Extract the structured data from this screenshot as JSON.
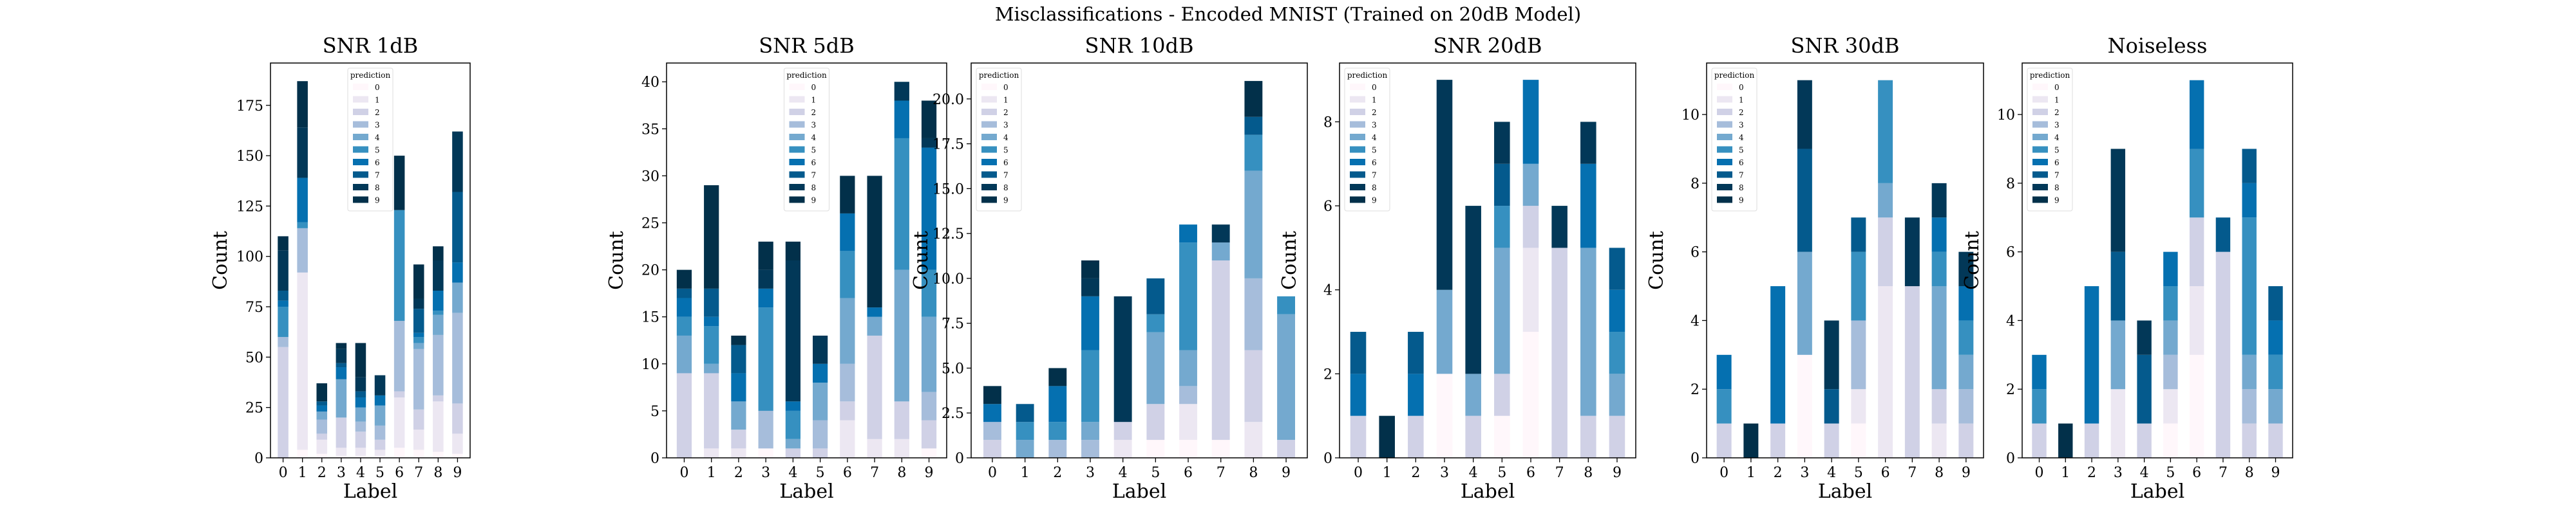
{
  "figure": {
    "title": "Misclassifications - Encoded MNIST (Trained on 20dB Model)"
  },
  "colors": [
    "#fff7fb",
    "#ece7f2",
    "#d0d1e6",
    "#a6bddb",
    "#74a9cf",
    "#3690c0",
    "#0570b0",
    "#045a8d",
    "#023858",
    "#02304a"
  ],
  "legend": {
    "title": "prediction",
    "labels": [
      "0",
      "1",
      "2",
      "3",
      "4",
      "5",
      "6",
      "7",
      "8",
      "9"
    ]
  },
  "chart_data": [
    {
      "type": "bar",
      "stacked": true,
      "title": "SNR 1dB",
      "xlabel": "Label",
      "ylabel": "Count",
      "categories": [
        "0",
        "1",
        "2",
        "3",
        "4",
        "5",
        "6",
        "7",
        "8",
        "9"
      ],
      "ylim": [
        0,
        196
      ],
      "yticks": [
        0,
        25,
        50,
        75,
        100,
        125,
        150,
        175
      ],
      "yticklabels": [
        "0",
        "25",
        "50",
        "75",
        "100",
        "125",
        "150",
        "175"
      ],
      "legend_position": "top-center",
      "series": [
        {
          "values": [
            0,
            4,
            2,
            1,
            1,
            1,
            5,
            4,
            3,
            2
          ]
        },
        {
          "values": [
            0,
            88,
            7,
            4,
            4,
            3,
            25,
            10,
            25,
            10
          ]
        },
        {
          "values": [
            55,
            0,
            3,
            15,
            8,
            5,
            3,
            10,
            3,
            15
          ]
        },
        {
          "values": [
            5,
            22,
            7,
            0,
            5,
            7,
            35,
            30,
            30,
            45
          ]
        },
        {
          "values": [
            0,
            0,
            4,
            19,
            7,
            10,
            0,
            3,
            10,
            15
          ]
        },
        {
          "values": [
            15,
            3,
            0,
            0,
            0,
            0,
            55,
            3,
            2,
            0
          ]
        },
        {
          "values": [
            3,
            22,
            3,
            6,
            5,
            5,
            0,
            2,
            10,
            10
          ]
        },
        {
          "values": [
            5,
            0,
            2,
            2,
            3,
            0,
            0,
            12,
            0,
            35
          ]
        },
        {
          "values": [
            20,
            25,
            0,
            7,
            7,
            10,
            0,
            5,
            15,
            30
          ]
        },
        {
          "values": [
            7,
            23,
            9,
            3,
            17,
            0,
            27,
            17,
            7,
            0
          ]
        }
      ]
    },
    {
      "type": "bar",
      "stacked": true,
      "title": "SNR 5dB",
      "xlabel": "Label",
      "ylabel": "Count",
      "categories": [
        "0",
        "1",
        "2",
        "3",
        "4",
        "5",
        "6",
        "7",
        "8",
        "9"
      ],
      "ylim": [
        0,
        42
      ],
      "yticks": [
        0,
        5,
        10,
        15,
        20,
        25,
        30,
        35,
        40
      ],
      "yticklabels": [
        "0",
        "5",
        "10",
        "15",
        "20",
        "25",
        "30",
        "35",
        "40"
      ],
      "legend_position": "top-center",
      "series": [
        {
          "values": [
            0,
            0,
            0,
            1,
            0,
            0,
            0,
            0,
            0,
            1
          ]
        },
        {
          "values": [
            0,
            1,
            1,
            0,
            0,
            0,
            4,
            2,
            2,
            0
          ]
        },
        {
          "values": [
            9,
            8,
            2,
            0,
            1,
            1,
            2,
            11,
            4,
            3
          ]
        },
        {
          "values": [
            0,
            0,
            0,
            4,
            0,
            3,
            4,
            0,
            0,
            3
          ]
        },
        {
          "values": [
            4,
            1,
            3,
            0,
            1,
            4,
            7,
            2,
            14,
            8
          ]
        },
        {
          "values": [
            2,
            4,
            0,
            11,
            3,
            0,
            5,
            0,
            14,
            5
          ]
        },
        {
          "values": [
            2,
            1,
            3,
            2,
            1,
            2,
            4,
            1,
            4,
            13
          ]
        },
        {
          "values": [
            1,
            3,
            3,
            0,
            0,
            0,
            0,
            0,
            0,
            0
          ]
        },
        {
          "values": [
            0,
            0,
            0,
            2,
            15,
            3,
            0,
            0,
            2,
            1
          ]
        },
        {
          "values": [
            2,
            11,
            1,
            3,
            2,
            0,
            4,
            14,
            0,
            4
          ]
        }
      ]
    },
    {
      "type": "bar",
      "stacked": true,
      "title": "SNR 10dB",
      "xlabel": "Label",
      "ylabel": "Count",
      "categories": [
        "0",
        "1",
        "2",
        "3",
        "4",
        "5",
        "6",
        "7",
        "8",
        "9"
      ],
      "ylim": [
        0,
        22
      ],
      "yticks": [
        0,
        2.5,
        5,
        7.5,
        10,
        12.5,
        15,
        17.5,
        20
      ],
      "yticklabels": [
        "0",
        "2.5",
        "5.0",
        "7.5",
        "10.0",
        "12.5",
        "15.0",
        "17.5",
        "20.0"
      ],
      "legend_position": "top-left",
      "series": [
        {
          "values": [
            0,
            0,
            0,
            0,
            0,
            1,
            1,
            1,
            0,
            0
          ]
        },
        {
          "values": [
            0,
            0,
            0,
            0,
            1,
            0,
            2,
            0,
            2,
            0
          ]
        },
        {
          "values": [
            1,
            0,
            0,
            0,
            1,
            2,
            0,
            10,
            4,
            1
          ]
        },
        {
          "values": [
            1,
            0,
            1,
            1,
            0,
            0,
            1,
            0,
            4,
            0
          ]
        },
        {
          "values": [
            0,
            1,
            0,
            1,
            0,
            4,
            2,
            1,
            6,
            7
          ]
        },
        {
          "values": [
            0,
            1,
            1,
            4,
            0,
            1,
            6,
            0,
            2,
            1
          ]
        },
        {
          "values": [
            1,
            0,
            2,
            3,
            0,
            0,
            1,
            0,
            0,
            0
          ]
        },
        {
          "values": [
            0,
            1,
            0,
            0,
            0,
            2,
            0,
            0,
            1,
            0
          ]
        },
        {
          "values": [
            0,
            0,
            0,
            1,
            7,
            0,
            0,
            1,
            0,
            0
          ]
        },
        {
          "values": [
            1,
            0,
            1,
            1,
            0,
            0,
            0,
            0,
            2,
            0
          ]
        }
      ]
    },
    {
      "type": "bar",
      "stacked": true,
      "title": "SNR 20dB",
      "xlabel": "Label",
      "ylabel": "Count",
      "categories": [
        "0",
        "1",
        "2",
        "3",
        "4",
        "5",
        "6",
        "7",
        "8",
        "9"
      ],
      "ylim": [
        0,
        9.4
      ],
      "yticks": [
        0,
        2,
        4,
        6,
        8
      ],
      "yticklabels": [
        "0",
        "2",
        "4",
        "6",
        "8"
      ],
      "legend_position": "top-left",
      "series": [
        {
          "values": [
            0,
            0,
            0,
            2,
            0,
            1,
            3,
            0,
            0,
            0
          ]
        },
        {
          "values": [
            0,
            0,
            0,
            0,
            0,
            0,
            2,
            0,
            0,
            0
          ]
        },
        {
          "values": [
            1,
            0,
            1,
            0,
            1,
            1,
            1,
            5,
            1,
            1
          ]
        },
        {
          "values": [
            0,
            0,
            0,
            0,
            0,
            0,
            0,
            0,
            0,
            0
          ]
        },
        {
          "values": [
            0,
            0,
            0,
            2,
            1,
            3,
            1,
            0,
            4,
            1
          ]
        },
        {
          "values": [
            0,
            0,
            0,
            0,
            0,
            1,
            0,
            0,
            0,
            1
          ]
        },
        {
          "values": [
            1,
            0,
            1,
            0,
            0,
            0,
            2,
            0,
            2,
            1
          ]
        },
        {
          "values": [
            1,
            0,
            1,
            0,
            0,
            1,
            0,
            0,
            0,
            1
          ]
        },
        {
          "values": [
            0,
            0,
            0,
            5,
            4,
            1,
            0,
            1,
            1,
            0
          ]
        },
        {
          "values": [
            0,
            1,
            0,
            0,
            0,
            0,
            0,
            0,
            0,
            0
          ]
        }
      ]
    },
    {
      "type": "bar",
      "stacked": true,
      "title": "SNR 30dB",
      "xlabel": "Label",
      "ylabel": "Count",
      "categories": [
        "0",
        "1",
        "2",
        "3",
        "4",
        "5",
        "6",
        "7",
        "8",
        "9"
      ],
      "ylim": [
        0,
        11.5
      ],
      "yticks": [
        0,
        2,
        4,
        6,
        8,
        10
      ],
      "yticklabels": [
        "0",
        "2",
        "4",
        "6",
        "8",
        "10"
      ],
      "legend_position": "top-left",
      "series": [
        {
          "values": [
            0,
            0,
            0,
            3,
            0,
            1,
            0,
            0,
            0,
            0
          ]
        },
        {
          "values": [
            0,
            0,
            0,
            0,
            0,
            1,
            5,
            0,
            1,
            0
          ]
        },
        {
          "values": [
            1,
            0,
            1,
            0,
            1,
            0,
            2,
            5,
            1,
            1
          ]
        },
        {
          "values": [
            0,
            0,
            0,
            0,
            0,
            2,
            0,
            0,
            0,
            1
          ]
        },
        {
          "values": [
            0,
            0,
            0,
            3,
            0,
            0,
            1,
            0,
            3,
            1
          ]
        },
        {
          "values": [
            1,
            0,
            0,
            0,
            0,
            2,
            3,
            0,
            1,
            1
          ]
        },
        {
          "values": [
            1,
            0,
            4,
            0,
            0,
            0,
            0,
            0,
            1,
            1
          ]
        },
        {
          "values": [
            0,
            0,
            0,
            3,
            1,
            1,
            0,
            0,
            0,
            0
          ]
        },
        {
          "values": [
            0,
            0,
            0,
            2,
            2,
            0,
            0,
            2,
            1,
            1
          ]
        },
        {
          "values": [
            0,
            1,
            0,
            0,
            0,
            0,
            0,
            0,
            0,
            0
          ]
        }
      ]
    },
    {
      "type": "bar",
      "stacked": true,
      "title": "Noiseless",
      "xlabel": "Label",
      "ylabel": "Count",
      "categories": [
        "0",
        "1",
        "2",
        "3",
        "4",
        "5",
        "6",
        "7",
        "8",
        "9"
      ],
      "ylim": [
        0,
        11.5
      ],
      "yticks": [
        0,
        2,
        4,
        6,
        8,
        10
      ],
      "yticklabels": [
        "0",
        "2",
        "4",
        "6",
        "8",
        "10"
      ],
      "legend_position": "top-left",
      "series": [
        {
          "values": [
            0,
            0,
            0,
            0,
            0,
            1,
            3,
            0,
            0,
            0
          ]
        },
        {
          "values": [
            0,
            0,
            0,
            2,
            0,
            1,
            2,
            0,
            0,
            0
          ]
        },
        {
          "values": [
            1,
            0,
            1,
            0,
            1,
            0,
            2,
            6,
            1,
            1
          ]
        },
        {
          "values": [
            0,
            0,
            0,
            0,
            0,
            1,
            0,
            0,
            1,
            0
          ]
        },
        {
          "values": [
            0,
            0,
            0,
            2,
            0,
            1,
            0,
            0,
            1,
            1
          ]
        },
        {
          "values": [
            1,
            0,
            0,
            0,
            0,
            1,
            2,
            0,
            4,
            1
          ]
        },
        {
          "values": [
            1,
            0,
            4,
            0,
            0,
            1,
            2,
            0,
            1,
            1
          ]
        },
        {
          "values": [
            0,
            0,
            0,
            2,
            2,
            0,
            0,
            1,
            1,
            1
          ]
        },
        {
          "values": [
            0,
            0,
            0,
            3,
            1,
            0,
            0,
            0,
            0,
            0
          ]
        },
        {
          "values": [
            0,
            1,
            0,
            0,
            0,
            0,
            0,
            0,
            0,
            0
          ]
        }
      ]
    }
  ]
}
